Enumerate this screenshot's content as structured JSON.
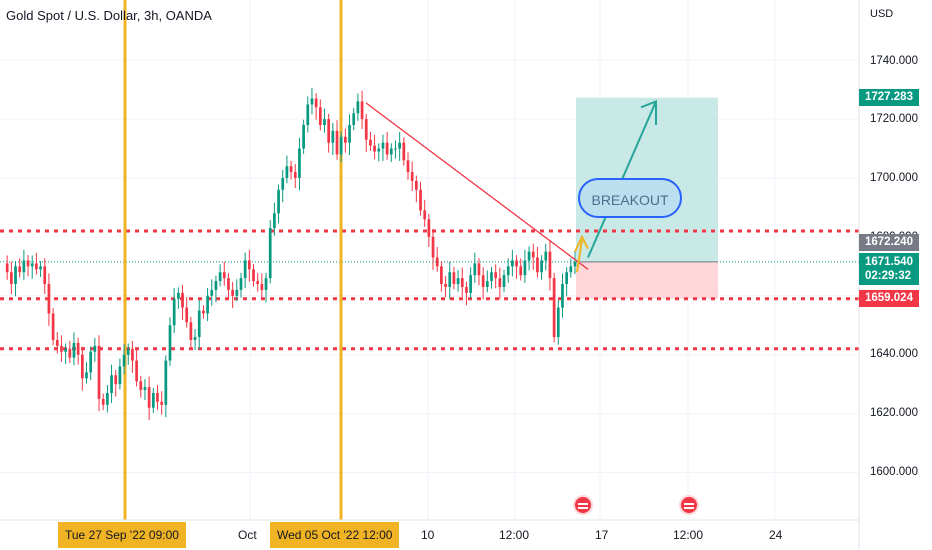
{
  "header": {
    "title": "Gold Spot / U.S. Dollar, 3h, OANDA",
    "currency": "USD"
  },
  "axis": {
    "y_ticks": [
      "1740.000",
      "1720.000",
      "1700.000",
      "1680.000",
      "1640.000",
      "1620.000",
      "1600.000"
    ],
    "x_ticks": [
      "Oct",
      "10",
      "12:00",
      "17",
      "12:00",
      "24"
    ],
    "x_highlights": [
      "Tue 27 Sep '22   09:00",
      "Wed 05 Oct '22   12:00"
    ]
  },
  "price_labels": {
    "target": "1727.283",
    "level": "1672.240",
    "last": "1671.540",
    "countdown": "02:29:32",
    "stop": "1659.024"
  },
  "annotation": {
    "breakout": "BREAKOUT"
  },
  "colors": {
    "up": "#089981",
    "down": "#f23645",
    "level": "#f23645",
    "vline": "#f0b324",
    "trend": "#f23645",
    "arrow": "#26a69a",
    "target_zone": "#b2dfdb",
    "stop_zone": "#ffcdd2"
  },
  "chart_data": {
    "type": "candlestick",
    "title": "Gold Spot / U.S. Dollar, 3h, OANDA",
    "ylabel": "USD",
    "ylim": [
      1588,
      1760
    ],
    "dashed_levels": [
      1682,
      1659,
      1642
    ],
    "current_price": 1671.54,
    "long_position": {
      "entry": 1671.54,
      "target": 1727.283,
      "stop": 1659.024
    },
    "trendline": [
      [
        1725.5
      ],
      [
        1669
      ]
    ],
    "closes": [
      1671,
      1668,
      1664,
      1670,
      1668,
      1672,
      1670,
      1671,
      1669,
      1670,
      1664,
      1654,
      1645,
      1643,
      1641,
      1642,
      1639,
      1644,
      1640,
      1632,
      1634,
      1641,
      1643,
      1625,
      1623,
      1627,
      1633,
      1630,
      1636,
      1640,
      1642,
      1638,
      1631,
      1628,
      1629,
      1622,
      1627,
      1624,
      1623,
      1638,
      1650,
      1659,
      1661,
      1656,
      1651,
      1645,
      1646,
      1655,
      1654,
      1660,
      1662,
      1665,
      1668,
      1666,
      1662,
      1660,
      1662,
      1666,
      1672,
      1669,
      1665,
      1664,
      1662,
      1666,
      1683,
      1688,
      1696,
      1700,
      1704,
      1702,
      1700,
      1710,
      1718,
      1725,
      1727,
      1724,
      1718,
      1720,
      1712,
      1716,
      1708,
      1714,
      1712,
      1718,
      1722,
      1726,
      1720,
      1713,
      1711,
      1709,
      1710,
      1712,
      1708,
      1710,
      1710,
      1712,
      1706,
      1702,
      1699,
      1696,
      1689,
      1686,
      1680,
      1673,
      1670,
      1664,
      1663,
      1668,
      1664,
      1666,
      1663,
      1661,
      1667,
      1671,
      1667,
      1663,
      1665,
      1668,
      1666,
      1663,
      1667,
      1670,
      1672,
      1670,
      1667,
      1672,
      1675,
      1673,
      1668,
      1672,
      1675,
      1666,
      1646,
      1656,
      1664,
      1668,
      1670,
      1671.54
    ]
  }
}
